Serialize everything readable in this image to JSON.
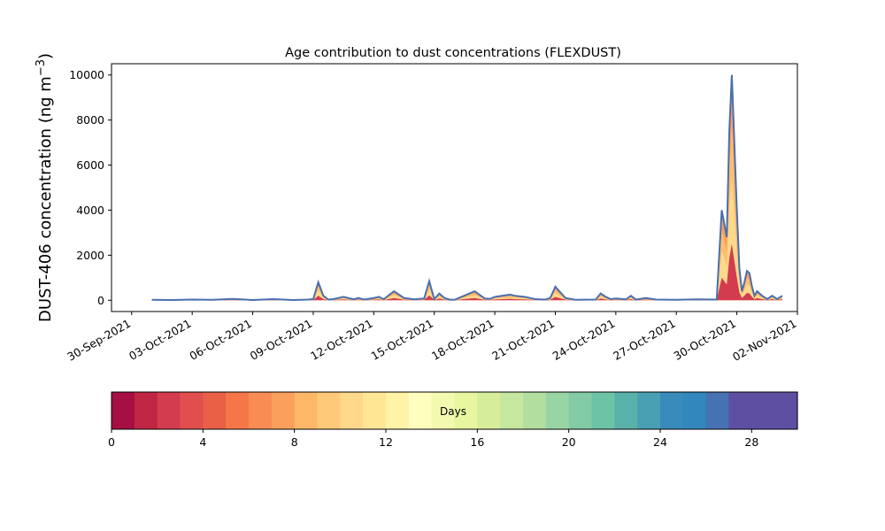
{
  "chart_data": {
    "type": "area",
    "title": "Age contribution to dust concentrations (FLEXDUST)",
    "ylabel_main": "DUST-406 concentration (ng m",
    "ylabel_sup": "−3",
    "ylabel_close": ")",
    "xlabel": "",
    "ylim": [
      -500,
      10500
    ],
    "xlim": [
      "2021-09-29",
      "2021-11-02"
    ],
    "yticks": [
      0,
      2000,
      4000,
      6000,
      8000,
      10000
    ],
    "xtick_labels": [
      "30-Sep-2021",
      "03-Oct-2021",
      "06-Oct-2021",
      "09-Oct-2021",
      "12-Oct-2021",
      "15-Oct-2021",
      "18-Oct-2021",
      "21-Oct-2021",
      "24-Oct-2021",
      "27-Oct-2021",
      "30-Oct-2021",
      "02-Nov-2021"
    ],
    "xtick_dates": [
      "2021-09-30",
      "2021-10-03",
      "2021-10-06",
      "2021-10-09",
      "2021-10-12",
      "2021-10-15",
      "2021-10-18",
      "2021-10-21",
      "2021-10-24",
      "2021-10-27",
      "2021-10-30",
      "2021-11-02"
    ],
    "total_series": {
      "x": [
        "2021-10-01",
        "2021-10-02",
        "2021-10-03",
        "2021-10-04",
        "2021-10-05",
        "2021-10-06",
        "2021-10-07",
        "2021-10-07T18:00",
        "2021-10-08",
        "2021-10-08T18:00",
        "2021-10-09",
        "2021-10-09T06:00",
        "2021-10-09T12:00",
        "2021-10-09T18:00",
        "2021-10-10",
        "2021-10-10T12:00",
        "2021-10-11",
        "2021-10-11T06:00",
        "2021-10-11T12:00",
        "2021-10-12",
        "2021-10-12T06:00",
        "2021-10-12T12:00",
        "2021-10-13",
        "2021-10-13T12:00",
        "2021-10-14",
        "2021-10-14T12:00",
        "2021-10-14T18:00",
        "2021-10-15",
        "2021-10-15T06:00",
        "2021-10-15T12:00",
        "2021-10-15T18:00",
        "2021-10-16",
        "2021-10-17",
        "2021-10-17T12:00",
        "2021-10-17T18:00",
        "2021-10-18",
        "2021-10-18T18:00",
        "2021-10-19",
        "2021-10-19T12:00",
        "2021-10-20",
        "2021-10-20T12:00",
        "2021-10-20T18:00",
        "2021-10-21",
        "2021-10-21T12:00",
        "2021-10-22",
        "2021-10-23",
        "2021-10-23T06:00",
        "2021-10-23T12:00",
        "2021-10-23T18:00",
        "2021-10-24",
        "2021-10-24T12:00",
        "2021-10-24T18:00",
        "2021-10-25",
        "2021-10-25T12:00",
        "2021-10-26",
        "2021-10-27",
        "2021-10-28",
        "2021-10-29",
        "2021-10-29T06:00",
        "2021-10-29T12:00",
        "2021-10-29T15:00",
        "2021-10-29T18:00",
        "2021-10-29T21:00",
        "2021-10-30",
        "2021-10-30T03:00",
        "2021-10-30T06:00",
        "2021-10-30T09:00",
        "2021-10-30T12:00",
        "2021-10-30T15:00",
        "2021-10-30T18:00",
        "2021-10-30T21:00",
        "2021-10-31",
        "2021-10-31T06:00",
        "2021-10-31T12:00",
        "2021-10-31T18:00",
        "2021-11-01",
        "2021-11-01T06:00"
      ],
      "y": [
        20,
        10,
        30,
        20,
        60,
        10,
        50,
        20,
        10,
        30,
        50,
        800,
        200,
        30,
        50,
        150,
        40,
        100,
        30,
        100,
        150,
        50,
        400,
        100,
        40,
        80,
        850,
        50,
        300,
        100,
        30,
        20,
        400,
        80,
        60,
        150,
        250,
        200,
        150,
        50,
        30,
        100,
        600,
        100,
        20,
        30,
        300,
        150,
        50,
        80,
        40,
        200,
        30,
        100,
        30,
        20,
        40,
        30,
        4000,
        2800,
        7500,
        10000,
        7000,
        4000,
        1400,
        400,
        800,
        1300,
        1200,
        600,
        200,
        400,
        200,
        50,
        200,
        50,
        200
      ]
    },
    "colorbar": {
      "label": "Days",
      "range": [
        0,
        30
      ],
      "tick_values": [
        0,
        4,
        8,
        12,
        16,
        20,
        24,
        28
      ],
      "tick_labels": [
        "0",
        "4",
        "8",
        "12",
        "16",
        "20",
        "24",
        "28"
      ],
      "colors": [
        "#a50f44",
        "#c02644",
        "#d33c4e",
        "#e04f4d",
        "#ea6047",
        "#f57748",
        "#f88c52",
        "#fb9f5c",
        "#fdb767",
        "#fec979",
        "#fed98c",
        "#fee695",
        "#fef3a6",
        "#fefebe",
        "#f3fab0",
        "#e7f69f",
        "#d6ee9b",
        "#c5e79f",
        "#b2df9f",
        "#99d5a4",
        "#82cba5",
        "#6cc3a5",
        "#5ab1aa",
        "#48a0b2",
        "#398bbc",
        "#3288bd",
        "#4672b4",
        "#5e4fa2",
        "#5e4fa2",
        "#5e4fa2"
      ]
    },
    "colors": {
      "total_line": "#4a6fb0",
      "old_fill": "#fb9f5c",
      "young_fill": "#fed98c",
      "young_fill_dark": "#fdbe6f",
      "low_fill": "#d33c4e"
    }
  }
}
